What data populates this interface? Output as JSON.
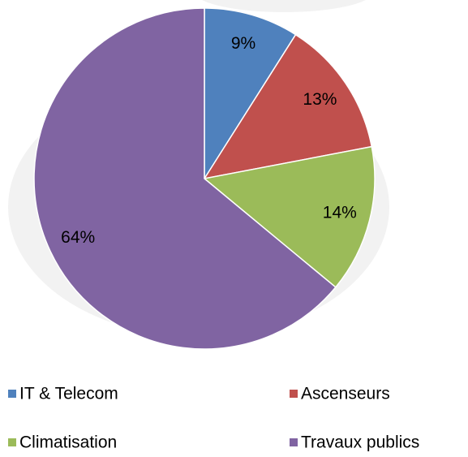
{
  "chart_data": {
    "type": "pie",
    "categories": [
      "IT & Telecom",
      "Ascenseurs",
      "Climatisation",
      "Travaux publics"
    ],
    "values": [
      9,
      13,
      14,
      64
    ],
    "value_labels": [
      "9%",
      "13%",
      "14%",
      "64%"
    ],
    "colors": [
      "#4f81bd",
      "#c0504d",
      "#9bbb59",
      "#8064a2"
    ],
    "legend": "bottom"
  }
}
